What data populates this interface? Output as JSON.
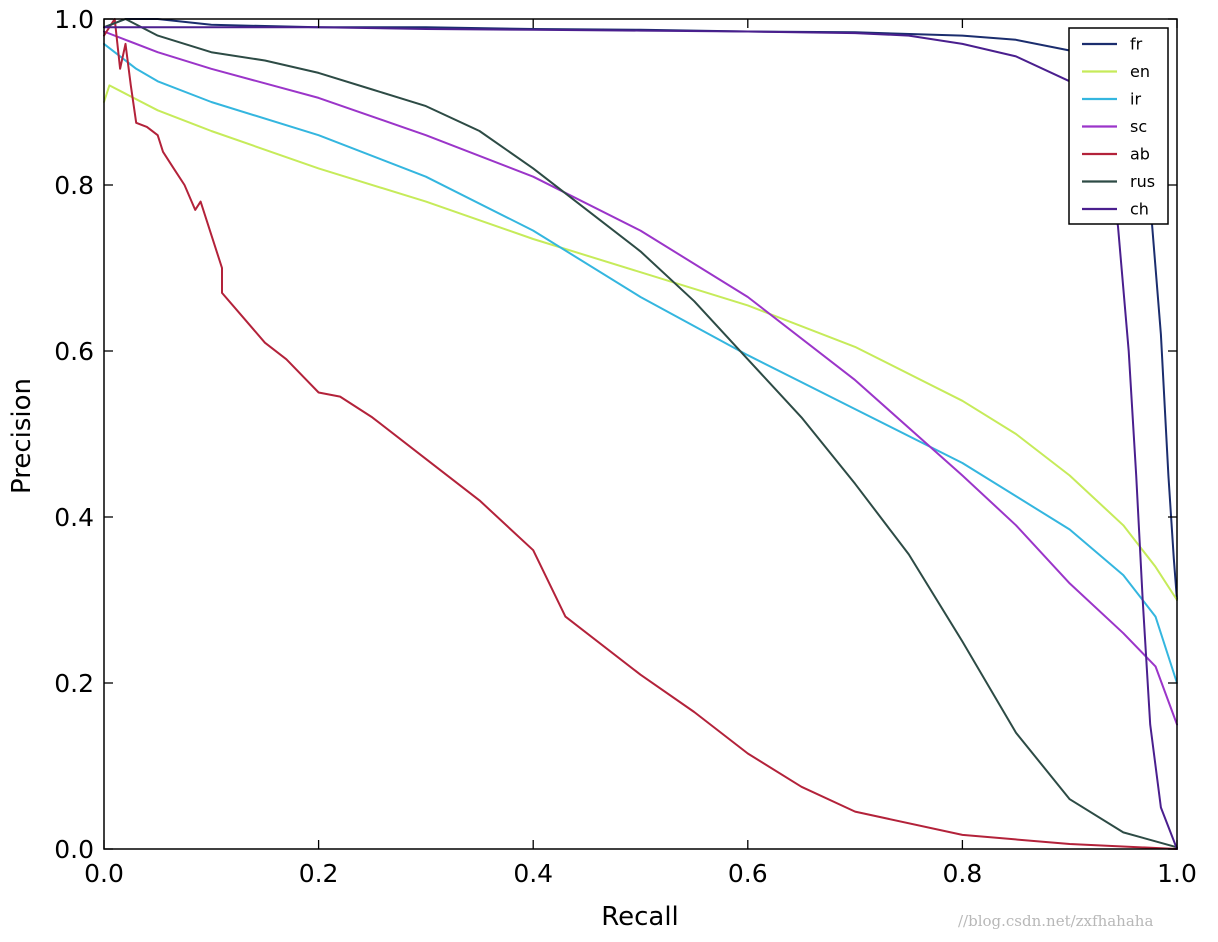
{
  "chart_data": {
    "type": "line",
    "title": "",
    "xlabel": "Recall",
    "ylabel": "Precision",
    "xlim": [
      0.0,
      1.0
    ],
    "ylim": [
      0.0,
      1.0
    ],
    "grid": false,
    "legend_position": "top-right",
    "x_ticks": [
      "0.0",
      "0.2",
      "0.4",
      "0.6",
      "0.8",
      "1.0"
    ],
    "y_ticks": [
      "0.0",
      "0.2",
      "0.4",
      "0.6",
      "0.8",
      "1.0"
    ],
    "series": [
      {
        "name": "fr",
        "color": "#1b2d6e",
        "points": [
          [
            0.0,
            0.99
          ],
          [
            0.02,
            1.0
          ],
          [
            0.05,
            1.0
          ],
          [
            0.1,
            0.993
          ],
          [
            0.2,
            0.99
          ],
          [
            0.3,
            0.99
          ],
          [
            0.4,
            0.988
          ],
          [
            0.5,
            0.987
          ],
          [
            0.6,
            0.985
          ],
          [
            0.7,
            0.984
          ],
          [
            0.8,
            0.98
          ],
          [
            0.85,
            0.975
          ],
          [
            0.9,
            0.962
          ],
          [
            0.93,
            0.945
          ],
          [
            0.95,
            0.92
          ],
          [
            0.965,
            0.87
          ],
          [
            0.975,
            0.78
          ],
          [
            0.985,
            0.62
          ],
          [
            0.992,
            0.45
          ],
          [
            0.997,
            0.35
          ],
          [
            1.0,
            0.3
          ]
        ]
      },
      {
        "name": "en",
        "color": "#c6eb5a",
        "points": [
          [
            0.0,
            0.9
          ],
          [
            0.005,
            0.92
          ],
          [
            0.02,
            0.91
          ],
          [
            0.05,
            0.89
          ],
          [
            0.1,
            0.865
          ],
          [
            0.2,
            0.82
          ],
          [
            0.3,
            0.78
          ],
          [
            0.4,
            0.735
          ],
          [
            0.5,
            0.695
          ],
          [
            0.6,
            0.655
          ],
          [
            0.7,
            0.605
          ],
          [
            0.8,
            0.54
          ],
          [
            0.85,
            0.5
          ],
          [
            0.9,
            0.45
          ],
          [
            0.95,
            0.39
          ],
          [
            0.98,
            0.34
          ],
          [
            1.0,
            0.3
          ]
        ]
      },
      {
        "name": "ir",
        "color": "#34b6df",
        "points": [
          [
            0.0,
            0.97
          ],
          [
            0.01,
            0.96
          ],
          [
            0.03,
            0.94
          ],
          [
            0.05,
            0.925
          ],
          [
            0.1,
            0.9
          ],
          [
            0.2,
            0.86
          ],
          [
            0.3,
            0.81
          ],
          [
            0.4,
            0.745
          ],
          [
            0.5,
            0.665
          ],
          [
            0.6,
            0.595
          ],
          [
            0.7,
            0.53
          ],
          [
            0.8,
            0.465
          ],
          [
            0.9,
            0.385
          ],
          [
            0.95,
            0.33
          ],
          [
            0.98,
            0.28
          ],
          [
            1.0,
            0.2
          ]
        ]
      },
      {
        "name": "sc",
        "color": "#9b35c9",
        "points": [
          [
            0.0,
            0.985
          ],
          [
            0.02,
            0.975
          ],
          [
            0.05,
            0.96
          ],
          [
            0.1,
            0.94
          ],
          [
            0.2,
            0.905
          ],
          [
            0.3,
            0.86
          ],
          [
            0.4,
            0.81
          ],
          [
            0.5,
            0.745
          ],
          [
            0.6,
            0.665
          ],
          [
            0.7,
            0.565
          ],
          [
            0.8,
            0.45
          ],
          [
            0.85,
            0.39
          ],
          [
            0.9,
            0.32
          ],
          [
            0.95,
            0.26
          ],
          [
            0.98,
            0.22
          ],
          [
            1.0,
            0.15
          ]
        ]
      },
      {
        "name": "ab",
        "color": "#b3223a",
        "points": [
          [
            0.0,
            0.98
          ],
          [
            0.01,
            1.0
          ],
          [
            0.015,
            0.94
          ],
          [
            0.02,
            0.97
          ],
          [
            0.025,
            0.92
          ],
          [
            0.03,
            0.875
          ],
          [
            0.04,
            0.87
          ],
          [
            0.05,
            0.86
          ],
          [
            0.055,
            0.84
          ],
          [
            0.065,
            0.82
          ],
          [
            0.075,
            0.8
          ],
          [
            0.085,
            0.77
          ],
          [
            0.09,
            0.78
          ],
          [
            0.1,
            0.74
          ],
          [
            0.11,
            0.7
          ],
          [
            0.11,
            0.67
          ],
          [
            0.13,
            0.64
          ],
          [
            0.15,
            0.61
          ],
          [
            0.17,
            0.59
          ],
          [
            0.2,
            0.55
          ],
          [
            0.22,
            0.545
          ],
          [
            0.25,
            0.52
          ],
          [
            0.3,
            0.47
          ],
          [
            0.35,
            0.42
          ],
          [
            0.4,
            0.36
          ],
          [
            0.43,
            0.28
          ],
          [
            0.5,
            0.21
          ],
          [
            0.55,
            0.165
          ],
          [
            0.6,
            0.115
          ],
          [
            0.65,
            0.075
          ],
          [
            0.7,
            0.045
          ],
          [
            0.8,
            0.017
          ],
          [
            0.9,
            0.006
          ],
          [
            1.0,
            0.0
          ]
        ]
      },
      {
        "name": "rus",
        "color": "#2d4b45",
        "points": [
          [
            0.0,
            0.99
          ],
          [
            0.02,
            1.0
          ],
          [
            0.05,
            0.98
          ],
          [
            0.1,
            0.96
          ],
          [
            0.15,
            0.95
          ],
          [
            0.2,
            0.935
          ],
          [
            0.25,
            0.915
          ],
          [
            0.3,
            0.895
          ],
          [
            0.35,
            0.865
          ],
          [
            0.4,
            0.82
          ],
          [
            0.45,
            0.77
          ],
          [
            0.5,
            0.72
          ],
          [
            0.55,
            0.66
          ],
          [
            0.6,
            0.59
          ],
          [
            0.65,
            0.52
          ],
          [
            0.7,
            0.44
          ],
          [
            0.75,
            0.355
          ],
          [
            0.8,
            0.25
          ],
          [
            0.85,
            0.14
          ],
          [
            0.9,
            0.06
          ],
          [
            0.95,
            0.02
          ],
          [
            1.0,
            0.002
          ]
        ]
      },
      {
        "name": "ch",
        "color": "#4a1f8e",
        "points": [
          [
            0.0,
            0.99
          ],
          [
            0.05,
            0.99
          ],
          [
            0.1,
            0.99
          ],
          [
            0.2,
            0.99
          ],
          [
            0.3,
            0.988
          ],
          [
            0.4,
            0.987
          ],
          [
            0.5,
            0.986
          ],
          [
            0.6,
            0.985
          ],
          [
            0.7,
            0.983
          ],
          [
            0.75,
            0.98
          ],
          [
            0.8,
            0.97
          ],
          [
            0.85,
            0.955
          ],
          [
            0.9,
            0.925
          ],
          [
            0.92,
            0.895
          ],
          [
            0.935,
            0.84
          ],
          [
            0.945,
            0.75
          ],
          [
            0.955,
            0.6
          ],
          [
            0.962,
            0.45
          ],
          [
            0.968,
            0.3
          ],
          [
            0.975,
            0.15
          ],
          [
            0.985,
            0.05
          ],
          [
            1.0,
            0.0
          ]
        ]
      }
    ]
  },
  "watermark": "//blog.csdn.net/zxfhahaha"
}
